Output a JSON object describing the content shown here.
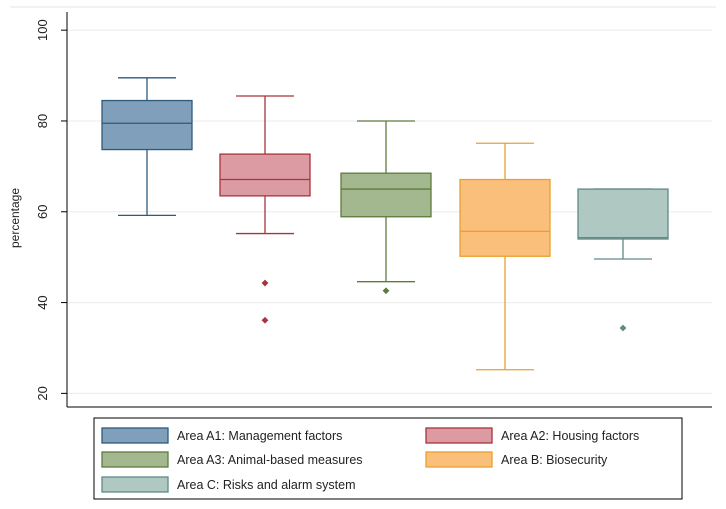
{
  "chart_data": {
    "type": "box",
    "title": "",
    "xlabel": "",
    "ylabel": "percentage",
    "ylim": [
      17,
      104
    ],
    "yticks": [
      20,
      40,
      60,
      80,
      100
    ],
    "grid": true,
    "legend_position": "bottom",
    "series": [
      {
        "name": "Area A1: Management factors",
        "color": "#7f9fba",
        "stroke": "#2e5a7c",
        "whisker_low": 59.2,
        "q1": 73.7,
        "median": 79.5,
        "q3": 84.5,
        "whisker_high": 89.5,
        "outliers": []
      },
      {
        "name": "Area A2: Housing factors",
        "color": "#dc9ba3",
        "stroke": "#a8343c",
        "whisker_low": 55.2,
        "q1": 63.5,
        "median": 67.1,
        "q3": 72.7,
        "whisker_high": 85.5,
        "outliers": [
          44.3,
          36.1
        ]
      },
      {
        "name": "Area A3: Animal-based measures",
        "color": "#a4b88f",
        "stroke": "#5d7b3e",
        "whisker_low": 44.6,
        "q1": 58.9,
        "median": 65.0,
        "q3": 68.5,
        "whisker_high": 80.0,
        "outliers": [
          42.6
        ]
      },
      {
        "name": "Area B: Biosecurity",
        "color": "#fbbf7c",
        "stroke": "#e8a030",
        "whisker_low": 25.2,
        "q1": 50.2,
        "median": 55.7,
        "q3": 67.1,
        "whisker_high": 75.1,
        "outliers": []
      },
      {
        "name": "Area C: Risks and alarm system",
        "color": "#afc8c2",
        "stroke": "#5f8a86",
        "whisker_low": 49.6,
        "q1": 54.0,
        "median": 54.3,
        "q3": 65.0,
        "whisker_high": 65.0,
        "outliers": [
          34.4
        ]
      }
    ]
  }
}
